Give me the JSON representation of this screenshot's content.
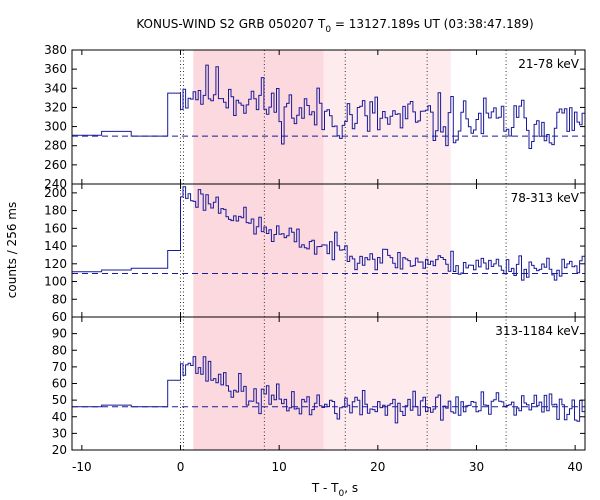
{
  "chart_data": {
    "type": "line",
    "title": "KONUS-WIND S2 GRB 050207 T0 = 13127.189s UT (03:38:47.189)",
    "title_parts": {
      "pre": "KONUS-WIND S2 GRB 050207 T",
      "sub": "0",
      "post": " = 13127.189s UT (03:38:47.189)"
    },
    "xlabel_parts": {
      "pre": "T - T",
      "sub": "0",
      "post": ", s"
    },
    "ylabel": "counts / 256 ms",
    "xlim": [
      -11,
      41
    ],
    "x_ticks": [
      -10,
      0,
      10,
      20,
      30,
      40
    ],
    "shaded_intervals": [
      {
        "x0": 1.3,
        "x1": 14.5,
        "color": "#fcd9df"
      },
      {
        "x0": 14.5,
        "x1": 27.4,
        "color": "#fdebee"
      }
    ],
    "vertical_marks": [
      0.0,
      0.3,
      8.5,
      16.7,
      25.0,
      33.0
    ],
    "style": {
      "line_color": "#1a1a99",
      "background_color": "#e74c3c80",
      "mark_color": "#333333"
    },
    "panels": [
      {
        "label": "21-78 keV",
        "ylim": [
          240,
          380
        ],
        "y_ticks": [
          240,
          260,
          280,
          300,
          320,
          340,
          360,
          380
        ],
        "background": 290,
        "pre_trigger": [
          {
            "x0": -11,
            "x1": -8,
            "y": 291
          },
          {
            "x0": -8,
            "x1": -5,
            "y": 295
          },
          {
            "x0": -5,
            "x1": -1.3,
            "y": 290
          },
          {
            "x0": -1.3,
            "x1": 0,
            "y": 335
          }
        ],
        "mean": [
          335,
          338,
          328,
          318,
          313,
          310,
          308,
          306,
          305,
          304,
          304,
          304
        ],
        "amp": 27,
        "seed": 11
      },
      {
        "label": "78-313 keV",
        "ylim": [
          60,
          210
        ],
        "y_ticks": [
          60,
          80,
          100,
          120,
          140,
          160,
          180,
          200
        ],
        "background": 109,
        "pre_trigger": [
          {
            "x0": -11,
            "x1": -8,
            "y": 111
          },
          {
            "x0": -8,
            "x1": -5,
            "y": 113
          },
          {
            "x0": -5,
            "x1": -1.3,
            "y": 115
          },
          {
            "x0": -1.3,
            "x1": 0,
            "y": 135
          }
        ],
        "mean": [
          200,
          188,
          165,
          150,
          140,
          132,
          125,
          122,
          120,
          118,
          117,
          116
        ],
        "amp": 14,
        "seed": 23
      },
      {
        "label": "313-1184 keV",
        "ylim": [
          20,
          100
        ],
        "y_ticks": [
          20,
          30,
          40,
          50,
          60,
          70,
          80,
          90
        ],
        "background": 46,
        "pre_trigger": [
          {
            "x0": -11,
            "x1": -8,
            "y": 46
          },
          {
            "x0": -8,
            "x1": -5,
            "y": 47
          },
          {
            "x0": -5,
            "x1": -1.3,
            "y": 46
          },
          {
            "x0": -1.3,
            "x1": 0,
            "y": 62
          }
        ],
        "mean": [
          76,
          64,
          52,
          49,
          47,
          46,
          46,
          46,
          46,
          46,
          46,
          46
        ],
        "amp": 9,
        "seed": 37
      }
    ]
  }
}
